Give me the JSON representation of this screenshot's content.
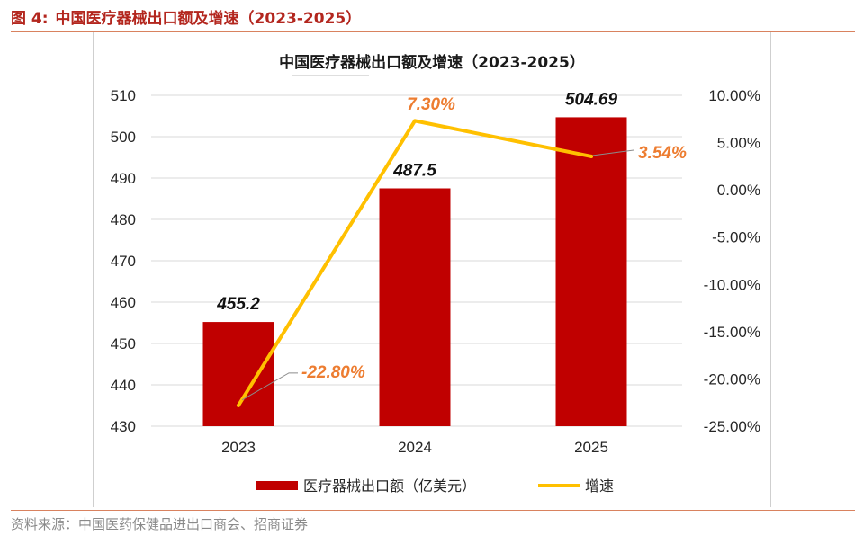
{
  "header": {
    "figure_number": "图 4:",
    "title": "中国医疗器械出口额及增速（2023-2025）"
  },
  "source": "资料来源：中国医药保健品进出口商会、招商证券",
  "colors": {
    "bar": "#c00000",
    "line": "#ffc000",
    "rate_label": "#ed7d31",
    "header": "#b3261e",
    "rule": "#d9825f"
  },
  "chart_data": {
    "type": "bar",
    "title": "中国医疗器械出口额及增速（2023-2025）",
    "categories": [
      "2023",
      "2024",
      "2025"
    ],
    "series": [
      {
        "name": "医疗器械出口额（亿美元）",
        "type": "bar",
        "axis": "left",
        "values": [
          455.2,
          487.5,
          504.69
        ],
        "labels": [
          "455.2",
          "487.5",
          "504.69"
        ]
      },
      {
        "name": "增速",
        "type": "line",
        "axis": "right",
        "values": [
          -22.8,
          7.3,
          3.54
        ],
        "labels": [
          "-22.80%",
          "7.30%",
          "3.54%"
        ]
      }
    ],
    "y_left": {
      "range": [
        430,
        510
      ],
      "ticks": [
        "430",
        "440",
        "450",
        "460",
        "470",
        "480",
        "490",
        "500",
        "510"
      ]
    },
    "y_right": {
      "range": [
        -25,
        10
      ],
      "ticks": [
        "-25.00%",
        "-20.00%",
        "-15.00%",
        "-10.00%",
        "-5.00%",
        "0.00%",
        "5.00%",
        "10.00%"
      ]
    },
    "grid": true,
    "legend_position": "bottom"
  }
}
